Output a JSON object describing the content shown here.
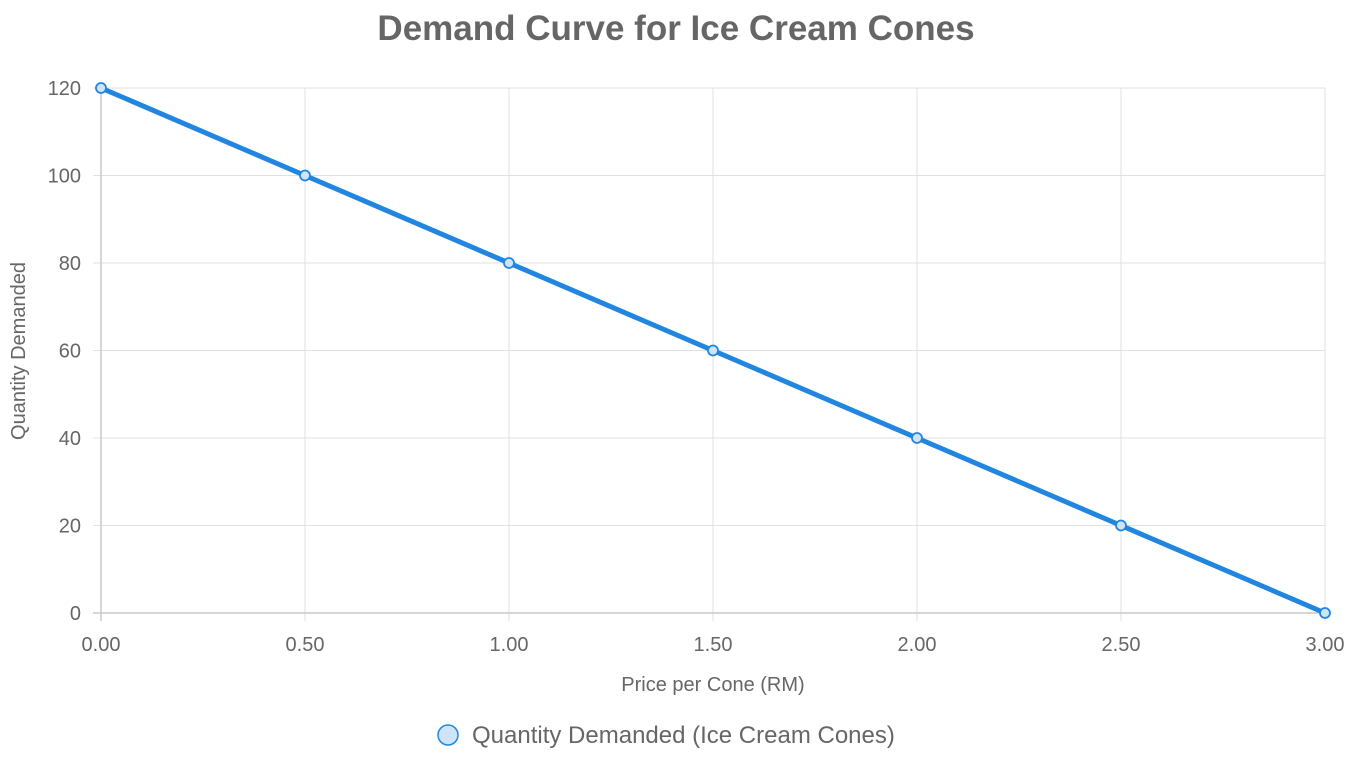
{
  "chart_data": {
    "type": "line",
    "title": "Demand Curve for Ice Cream Cones",
    "xlabel": "Price per Cone (RM)",
    "ylabel": "Quantity Demanded",
    "x": [
      0.0,
      0.5,
      1.0,
      1.5,
      2.0,
      2.5,
      3.0
    ],
    "x_tick_labels": [
      "0.00",
      "0.50",
      "1.00",
      "1.50",
      "2.00",
      "2.50",
      "3.00"
    ],
    "y_ticks": [
      0,
      20,
      40,
      60,
      80,
      100,
      120
    ],
    "xlim": [
      0,
      3
    ],
    "ylim": [
      0,
      120
    ],
    "grid": true,
    "legend_position": "bottom",
    "series": [
      {
        "name": "Quantity Demanded (Ice Cream Cones)",
        "values": [
          120,
          100,
          80,
          60,
          40,
          20,
          0
        ],
        "color": "#2186e0",
        "point_fill": "#cfe4f7"
      }
    ]
  }
}
